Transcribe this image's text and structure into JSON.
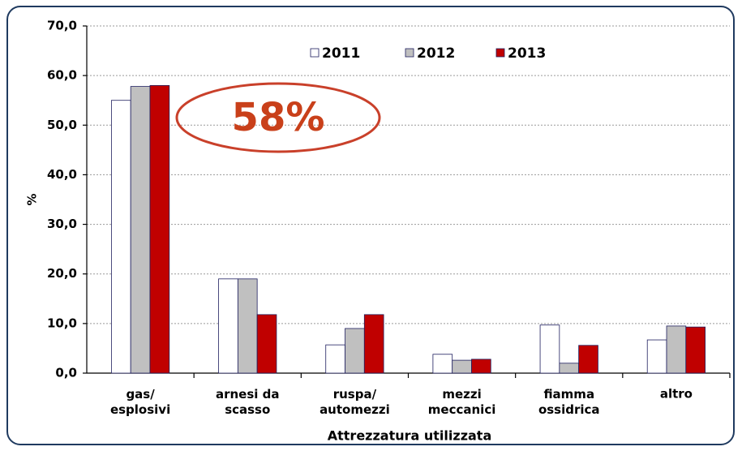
{
  "chart_data": {
    "type": "bar",
    "y_label": "%",
    "x_label": "Attrezzatura utilizzata",
    "annotation": "58%",
    "categories": [
      "gas/\nesplosivi",
      "arnesi da\nscasso",
      "ruspa/\nautomezzi",
      "mezzi\nmeccanici",
      "fiamma\nossidrica",
      "altro"
    ],
    "series": [
      {
        "name": "2011",
        "color": "#ffffff",
        "values": [
          55.0,
          19.0,
          5.7,
          3.8,
          9.7,
          6.7
        ]
      },
      {
        "name": "2012",
        "color": "#c0c0c0",
        "values": [
          57.8,
          19.0,
          9.0,
          2.6,
          2.0,
          9.5
        ]
      },
      {
        "name": "2013",
        "color": "#c00000",
        "values": [
          58.0,
          11.8,
          11.8,
          2.8,
          5.6,
          9.3
        ]
      }
    ],
    "ylim": [
      0,
      70
    ],
    "yticks": [
      {
        "value": 0,
        "label": "0,0"
      },
      {
        "value": 10,
        "label": "10,0"
      },
      {
        "value": 20,
        "label": "20,0"
      },
      {
        "value": 30,
        "label": "30,0"
      },
      {
        "value": 40,
        "label": "40,0"
      },
      {
        "value": 50,
        "label": "50,0"
      },
      {
        "value": 60,
        "label": "60,0"
      },
      {
        "value": 70,
        "label": "70,0"
      }
    ],
    "grid": true,
    "legend": "top"
  }
}
